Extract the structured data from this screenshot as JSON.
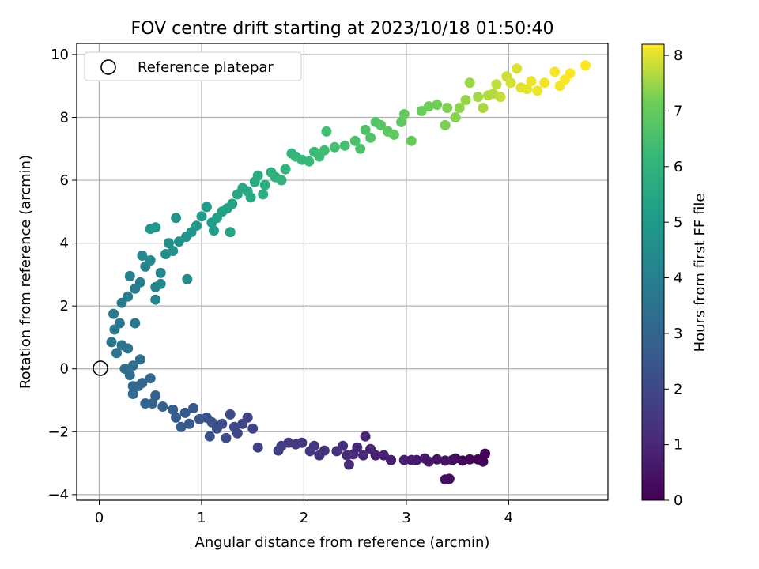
{
  "chart_data": {
    "type": "scatter",
    "title": "FOV centre drift starting at 2023/10/18 01:50:40",
    "xlabel": "Angular distance from reference (arcmin)",
    "ylabel": "Rotation from reference (arcmin)",
    "xlim": [
      -0.22,
      4.97
    ],
    "ylim": [
      -4.18,
      10.35
    ],
    "xticks": [
      "0",
      "1",
      "2",
      "3",
      "4"
    ],
    "yticks": [
      "−4",
      "−2",
      "0",
      "2",
      "4",
      "6",
      "8",
      "10"
    ],
    "grid": true,
    "legend": {
      "placement": "top-left",
      "entries": [
        "Reference platepar"
      ]
    },
    "reference_point": {
      "x": 0,
      "y": 0,
      "marker": "open-circle"
    },
    "colorbar": {
      "label": "Hours from first FF file",
      "range": [
        0,
        8.2
      ],
      "ticks": [
        "0",
        "1",
        "2",
        "3",
        "4",
        "5",
        "6",
        "7",
        "8"
      ],
      "colormap": "viridis"
    },
    "series": [
      {
        "points": [
          [
            3.77,
            -2.7,
            0.05
          ],
          [
            3.75,
            -2.95,
            0.08
          ],
          [
            3.7,
            -2.88,
            0.1
          ],
          [
            3.62,
            -2.88,
            0.15
          ],
          [
            3.55,
            -2.92,
            0.2
          ],
          [
            3.48,
            -2.85,
            0.25
          ],
          [
            3.42,
            -3.5,
            0.3
          ],
          [
            3.38,
            -3.52,
            0.35
          ],
          [
            3.45,
            -2.9,
            0.4
          ],
          [
            3.38,
            -2.92,
            0.45
          ],
          [
            3.3,
            -2.88,
            0.5
          ],
          [
            3.22,
            -2.95,
            0.55
          ],
          [
            3.18,
            -2.85,
            0.6
          ],
          [
            3.1,
            -2.9,
            0.65
          ],
          [
            3.05,
            -2.9,
            0.7
          ],
          [
            2.98,
            -2.9,
            0.75
          ],
          [
            2.85,
            -2.9,
            0.8
          ],
          [
            2.78,
            -2.75,
            0.85
          ],
          [
            2.7,
            -2.75,
            0.9
          ],
          [
            2.65,
            -2.55,
            0.95
          ],
          [
            2.6,
            -2.15,
            1.0
          ],
          [
            2.58,
            -2.75,
            1.05
          ],
          [
            2.52,
            -2.5,
            1.1
          ],
          [
            2.48,
            -2.72,
            1.12
          ],
          [
            2.44,
            -3.05,
            1.15
          ],
          [
            2.42,
            -2.75,
            1.2
          ],
          [
            2.38,
            -2.45,
            1.25
          ],
          [
            2.32,
            -2.62,
            1.3
          ],
          [
            2.2,
            -2.6,
            1.35
          ],
          [
            2.15,
            -2.75,
            1.4
          ],
          [
            2.1,
            -2.45,
            1.45
          ],
          [
            2.06,
            -2.62,
            1.5
          ],
          [
            1.98,
            -2.35,
            1.55
          ],
          [
            1.92,
            -2.4,
            1.6
          ],
          [
            1.85,
            -2.35,
            1.65
          ],
          [
            1.78,
            -2.45,
            1.7
          ],
          [
            1.75,
            -2.6,
            1.75
          ],
          [
            1.55,
            -2.5,
            1.8
          ],
          [
            1.5,
            -1.9,
            1.85
          ],
          [
            1.45,
            -1.55,
            1.9
          ],
          [
            1.4,
            -1.75,
            1.95
          ],
          [
            1.35,
            -2.05,
            2.0
          ],
          [
            1.32,
            -1.85,
            2.05
          ],
          [
            1.28,
            -1.45,
            2.1
          ],
          [
            1.24,
            -2.2,
            2.15
          ],
          [
            1.2,
            -1.75,
            2.2
          ],
          [
            1.15,
            -1.9,
            2.25
          ],
          [
            1.1,
            -1.7,
            2.3
          ],
          [
            1.05,
            -1.55,
            2.35
          ],
          [
            1.08,
            -2.15,
            2.4
          ],
          [
            0.98,
            -1.6,
            2.45
          ],
          [
            0.92,
            -1.25,
            2.5
          ],
          [
            0.88,
            -1.75,
            2.55
          ],
          [
            0.84,
            -1.4,
            2.6
          ],
          [
            0.8,
            -1.85,
            2.65
          ],
          [
            0.75,
            -1.55,
            2.7
          ],
          [
            0.72,
            -1.3,
            2.75
          ],
          [
            0.62,
            -1.2,
            2.8
          ],
          [
            0.55,
            -0.85,
            2.85
          ],
          [
            0.52,
            -1.1,
            2.9
          ],
          [
            0.45,
            -1.1,
            2.95
          ],
          [
            0.5,
            -0.3,
            3.0
          ],
          [
            0.42,
            -0.45,
            3.05
          ],
          [
            0.38,
            -0.55,
            3.1
          ],
          [
            0.33,
            -0.8,
            3.15
          ],
          [
            0.33,
            -0.55,
            3.2
          ],
          [
            0.3,
            -0.2,
            3.25
          ],
          [
            0.25,
            0.0,
            3.3
          ],
          [
            0.4,
            0.3,
            3.35
          ],
          [
            0.33,
            0.1,
            3.4
          ],
          [
            0.28,
            0.65,
            3.45
          ],
          [
            0.22,
            0.75,
            3.5
          ],
          [
            0.17,
            0.5,
            3.55
          ],
          [
            0.12,
            0.85,
            3.6
          ],
          [
            0.15,
            1.25,
            3.65
          ],
          [
            0.2,
            1.45,
            3.7
          ],
          [
            0.35,
            1.45,
            3.75
          ],
          [
            0.14,
            1.75,
            3.8
          ],
          [
            0.22,
            2.1,
            3.85
          ],
          [
            0.28,
            2.3,
            3.9
          ],
          [
            0.35,
            2.55,
            3.95
          ],
          [
            0.4,
            2.75,
            4.0
          ],
          [
            0.3,
            2.95,
            4.05
          ],
          [
            0.45,
            3.25,
            4.1
          ],
          [
            0.55,
            2.6,
            4.15
          ],
          [
            0.55,
            2.2,
            4.2
          ],
          [
            0.6,
            2.7,
            4.25
          ],
          [
            0.6,
            3.05,
            4.3
          ],
          [
            0.5,
            3.45,
            4.35
          ],
          [
            0.42,
            3.6,
            4.4
          ],
          [
            0.86,
            2.85,
            4.45
          ],
          [
            0.65,
            3.65,
            4.5
          ],
          [
            0.68,
            4.0,
            4.55
          ],
          [
            0.72,
            3.75,
            4.6
          ],
          [
            0.78,
            4.05,
            4.65
          ],
          [
            0.75,
            4.8,
            4.7
          ],
          [
            0.85,
            4.2,
            4.75
          ],
          [
            0.9,
            4.35,
            4.8
          ],
          [
            0.55,
            4.5,
            4.85
          ],
          [
            0.5,
            4.45,
            4.9
          ],
          [
            0.95,
            4.55,
            4.95
          ],
          [
            1.0,
            4.85,
            5.0
          ],
          [
            1.05,
            5.15,
            5.05
          ],
          [
            1.1,
            4.65,
            5.1
          ],
          [
            1.12,
            4.4,
            5.15
          ],
          [
            1.15,
            4.8,
            5.2
          ],
          [
            1.2,
            5.0,
            5.25
          ],
          [
            1.25,
            5.1,
            5.3
          ],
          [
            1.3,
            5.25,
            5.35
          ],
          [
            1.28,
            4.35,
            5.4
          ],
          [
            1.35,
            5.55,
            5.45
          ],
          [
            1.4,
            5.75,
            5.5
          ],
          [
            1.45,
            5.65,
            5.55
          ],
          [
            1.48,
            5.45,
            5.6
          ],
          [
            1.52,
            5.95,
            5.65
          ],
          [
            1.55,
            6.15,
            5.7
          ],
          [
            1.6,
            5.55,
            5.75
          ],
          [
            1.62,
            5.85,
            5.8
          ],
          [
            1.68,
            6.25,
            5.85
          ],
          [
            1.72,
            6.1,
            5.9
          ],
          [
            1.78,
            6.0,
            5.95
          ],
          [
            1.82,
            6.35,
            6.0
          ],
          [
            1.88,
            6.85,
            6.05
          ],
          [
            1.92,
            6.75,
            6.1
          ],
          [
            1.98,
            6.65,
            6.15
          ],
          [
            2.05,
            6.6,
            6.2
          ],
          [
            2.1,
            6.9,
            6.25
          ],
          [
            2.15,
            6.75,
            6.3
          ],
          [
            2.2,
            6.95,
            6.35
          ],
          [
            2.22,
            7.55,
            6.4
          ],
          [
            2.3,
            7.05,
            6.45
          ],
          [
            2.4,
            7.1,
            6.5
          ],
          [
            2.5,
            7.25,
            6.55
          ],
          [
            2.55,
            7.0,
            6.6
          ],
          [
            2.6,
            7.6,
            6.65
          ],
          [
            2.65,
            7.35,
            6.7
          ],
          [
            2.7,
            7.85,
            6.75
          ],
          [
            2.75,
            7.75,
            6.8
          ],
          [
            2.82,
            7.55,
            6.85
          ],
          [
            2.88,
            7.45,
            6.9
          ],
          [
            2.95,
            7.85,
            6.95
          ],
          [
            2.98,
            8.1,
            7.0
          ],
          [
            3.05,
            7.25,
            7.05
          ],
          [
            3.15,
            8.2,
            7.1
          ],
          [
            3.22,
            8.35,
            7.15
          ],
          [
            3.3,
            8.4,
            7.2
          ],
          [
            3.38,
            7.75,
            7.25
          ],
          [
            3.4,
            8.3,
            7.3
          ],
          [
            3.48,
            8.0,
            7.35
          ],
          [
            3.52,
            8.3,
            7.4
          ],
          [
            3.58,
            8.55,
            7.45
          ],
          [
            3.62,
            9.1,
            7.5
          ],
          [
            3.7,
            8.65,
            7.55
          ],
          [
            3.75,
            8.3,
            7.6
          ],
          [
            3.8,
            8.7,
            7.65
          ],
          [
            3.85,
            8.75,
            7.7
          ],
          [
            3.88,
            9.05,
            7.75
          ],
          [
            3.92,
            8.65,
            7.8
          ],
          [
            3.98,
            9.3,
            7.85
          ],
          [
            4.02,
            9.1,
            7.9
          ],
          [
            4.08,
            9.55,
            7.95
          ],
          [
            4.12,
            8.95,
            8.0
          ],
          [
            4.18,
            8.9,
            8.03
          ],
          [
            4.22,
            9.15,
            8.06
          ],
          [
            4.28,
            8.85,
            8.09
          ],
          [
            4.35,
            9.1,
            8.12
          ],
          [
            4.45,
            9.45,
            8.14
          ],
          [
            4.5,
            9.0,
            8.16
          ],
          [
            4.55,
            9.2,
            8.18
          ],
          [
            4.6,
            9.4,
            8.19
          ],
          [
            4.75,
            9.65,
            8.2
          ]
        ]
      }
    ]
  }
}
